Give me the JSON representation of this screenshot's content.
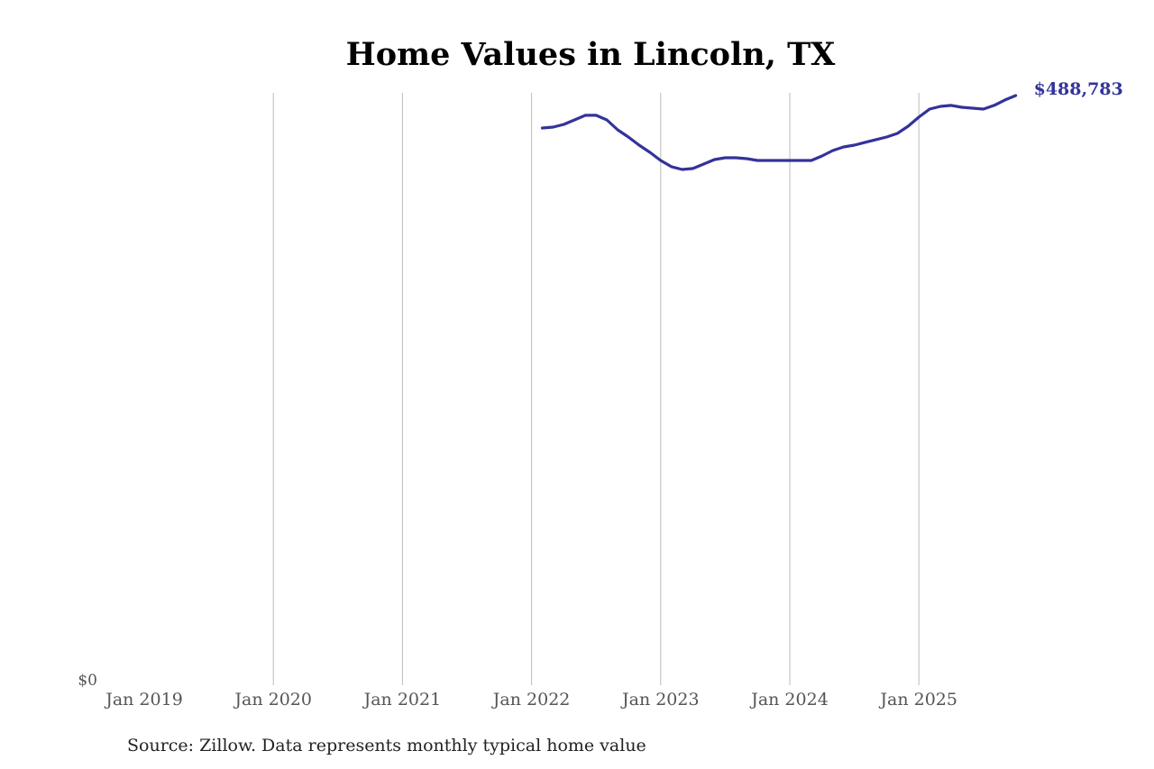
{
  "chart_data": {
    "type": "line",
    "title": "Home Values in Lincoln, TX",
    "xlabel": "",
    "ylabel": "",
    "x_ticks": [
      "Jan 2019",
      "Jan 2020",
      "Jan 2021",
      "Jan 2022",
      "Jan 2023",
      "Jan 2024",
      "Jan 2025"
    ],
    "y_ticks": [
      "$0"
    ],
    "xlim": [
      "2019-01",
      "2025-12"
    ],
    "ylim": [
      0,
      488783
    ],
    "grid": "vertical",
    "end_label": "$488,783",
    "color": "#33339a",
    "series": [
      {
        "x": [
          "2022-02",
          "2022-03",
          "2022-04",
          "2022-05",
          "2022-06",
          "2022-07",
          "2022-08",
          "2022-09",
          "2022-10",
          "2022-11",
          "2022-12",
          "2023-01",
          "2023-02",
          "2023-03",
          "2023-04",
          "2023-05",
          "2023-06",
          "2023-07",
          "2023-08",
          "2023-09",
          "2023-10",
          "2023-11",
          "2023-12",
          "2024-01",
          "2024-02",
          "2024-03",
          "2024-04",
          "2024-05",
          "2024-06",
          "2024-07",
          "2024-08",
          "2024-09",
          "2024-10",
          "2024-11",
          "2024-12",
          "2025-01",
          "2025-02",
          "2025-03",
          "2025-04",
          "2025-05",
          "2025-06",
          "2025-07",
          "2025-08",
          "2025-09",
          "2025-10"
        ],
        "values": [
          461900,
          462600,
          464900,
          468600,
          472400,
          472400,
          468600,
          460400,
          454400,
          447700,
          441700,
          435000,
          429800,
          427500,
          428300,
          432000,
          435700,
          437200,
          437200,
          436500,
          435000,
          435000,
          435000,
          435000,
          435000,
          435000,
          438700,
          443200,
          446200,
          447700,
          450000,
          452200,
          454400,
          457400,
          463400,
          470900,
          477600,
          479800,
          480600,
          479100,
          478300,
          477600,
          480600,
          485100,
          488783
        ]
      }
    ]
  },
  "source": "Source: Zillow. Data represents monthly typical home value"
}
